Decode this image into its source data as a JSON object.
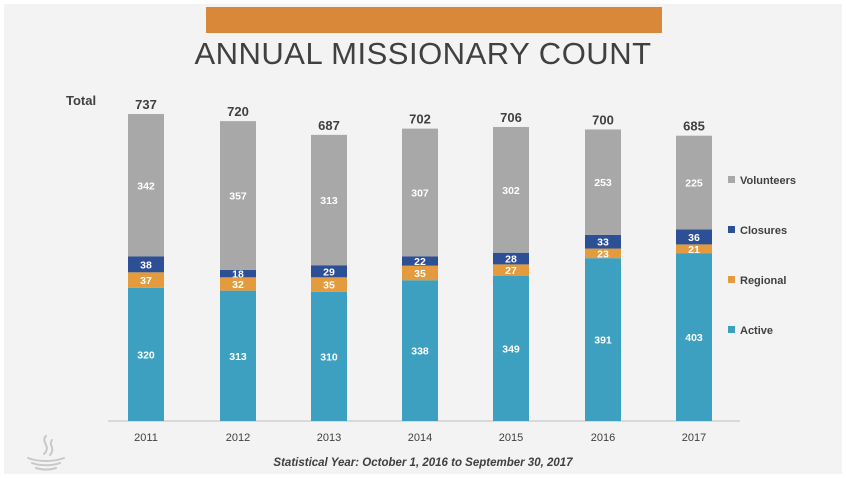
{
  "chart_data": {
    "type": "bar",
    "stacked": true,
    "title": "ANNUAL MISSIONARY COUNT",
    "total_label": "Total",
    "categories": [
      "2011",
      "2012",
      "2013",
      "2014",
      "2015",
      "2016",
      "2017"
    ],
    "totals": [
      737,
      720,
      687,
      702,
      706,
      700,
      685
    ],
    "series": [
      {
        "name": "Active",
        "color": "#3ea0c0",
        "values": [
          320,
          313,
          310,
          338,
          349,
          391,
          403
        ]
      },
      {
        "name": "Regional",
        "color": "#e39b3d",
        "values": [
          37,
          32,
          35,
          35,
          27,
          23,
          21
        ]
      },
      {
        "name": "Closures",
        "color": "#2c4f95",
        "values": [
          38,
          18,
          29,
          22,
          28,
          33,
          36
        ]
      },
      {
        "name": "Volunteers",
        "color": "#a8a8a8",
        "values": [
          342,
          357,
          313,
          307,
          302,
          253,
          225
        ]
      }
    ],
    "legend_order": [
      "Volunteers",
      "Closures",
      "Regional",
      "Active"
    ],
    "legend_position": "right",
    "grid": false
  },
  "footnote": "Statistical Year: October 1, 2016 to September 30, 2017",
  "accent_color": "#d9883a"
}
